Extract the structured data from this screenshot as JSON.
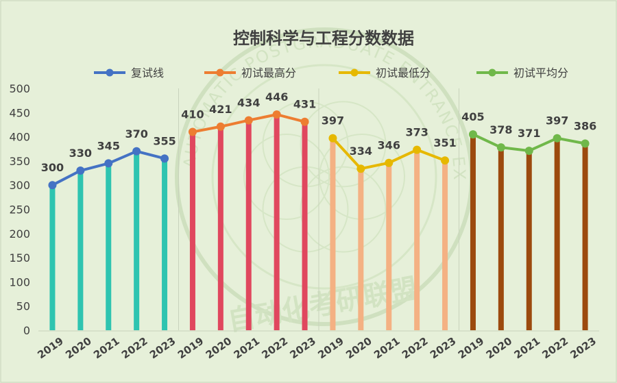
{
  "chart_data": {
    "type": "line",
    "title": "控制科学与工程分数数据",
    "xlabel": "",
    "ylabel": "",
    "ylim": [
      0,
      500
    ],
    "yticks": [
      0,
      50,
      100,
      150,
      200,
      250,
      300,
      350,
      400,
      450,
      500
    ],
    "grid": false,
    "legend_position": "top",
    "watermark_text": "自动化考研联盟",
    "watermark_ring_text": "AUTOMATIC POSTGRADUATE ENTRANCE EXAMINATION ALLIANCE",
    "series": [
      {
        "name": "复试线",
        "years": [
          "2019",
          "2020",
          "2021",
          "2022",
          "2023"
        ],
        "values": [
          300,
          330,
          345,
          370,
          355
        ],
        "line_color": "#4472c4",
        "stem_color": "#2ec4b0"
      },
      {
        "name": "初试最高分",
        "years": [
          "2019",
          "2020",
          "2021",
          "2022",
          "2023"
        ],
        "values": [
          410,
          421,
          434,
          446,
          431
        ],
        "line_color": "#ed7d31",
        "stem_color": "#e0475e"
      },
      {
        "name": "初试最低分",
        "years": [
          "2019",
          "2020",
          "2021",
          "2022",
          "2023"
        ],
        "values": [
          397,
          334,
          346,
          373,
          351
        ],
        "line_color": "#e6b800",
        "stem_color": "#f4b183"
      },
      {
        "name": "初试平均分",
        "years": [
          "2019",
          "2020",
          "2021",
          "2022",
          "2023"
        ],
        "values": [
          405,
          378,
          371,
          397,
          386
        ],
        "line_color": "#70b84a",
        "stem_color": "#9c4a0e"
      }
    ]
  }
}
